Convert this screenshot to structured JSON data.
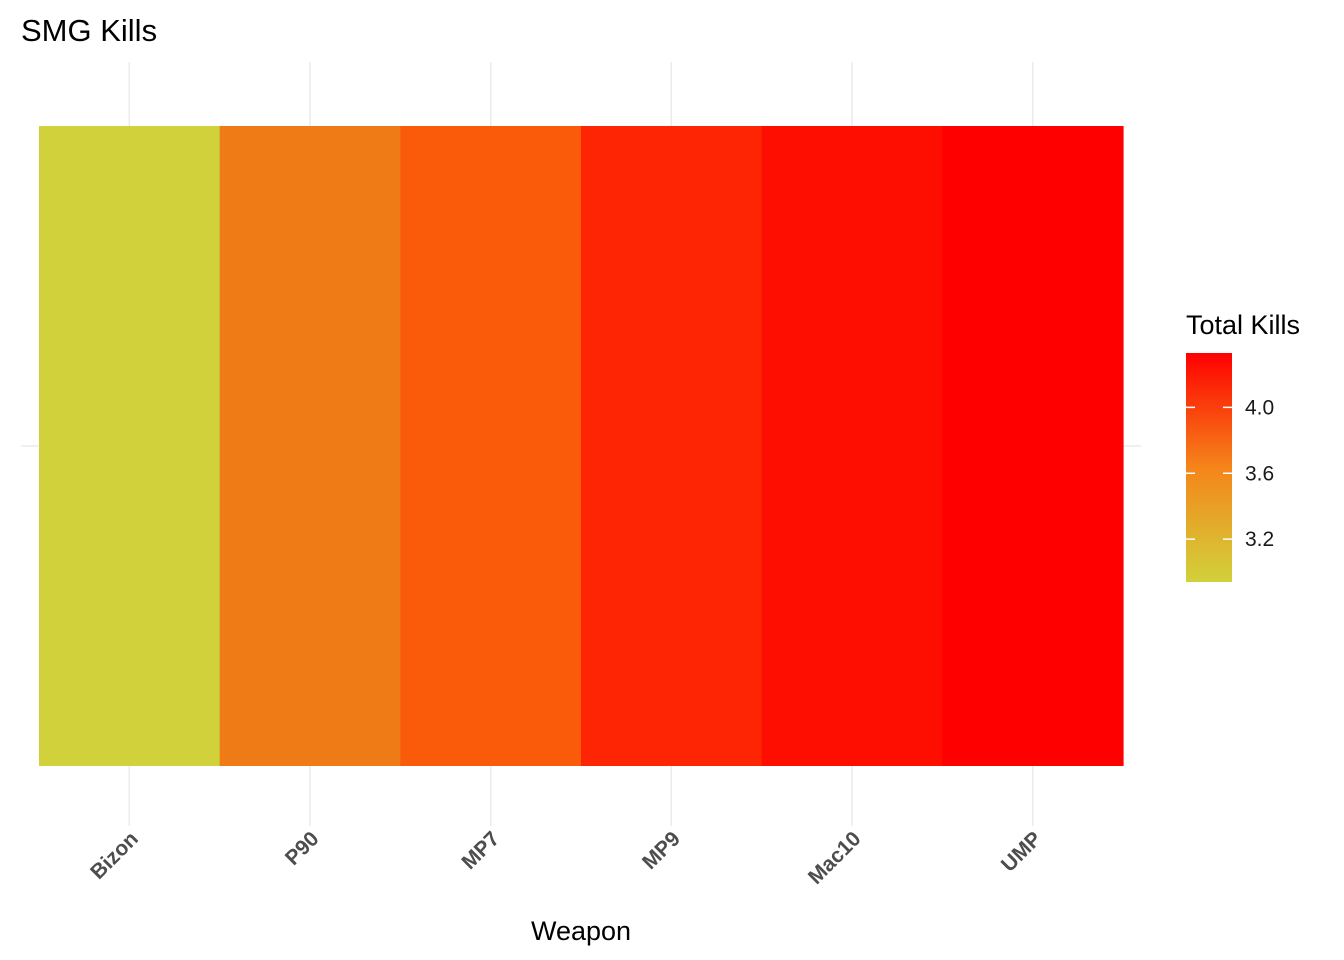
{
  "chart_data": {
    "type": "heatmap",
    "title": "SMG Kills",
    "xlabel": "Weapon",
    "ylabel": "",
    "categories": [
      "Bizon",
      "P90",
      "MP7",
      "MP9",
      "Mac10",
      "UMP"
    ],
    "values": [
      2.94,
      3.69,
      3.89,
      4.18,
      4.25,
      4.33
    ],
    "tile_colors": [
      "#d1d13b",
      "#ef7b16",
      "#f95b0a",
      "#fd2504",
      "#fe0e01",
      "#ff0000"
    ],
    "legend": {
      "title": "Total Kills",
      "ticks": [
        3.2,
        3.6,
        4.0
      ],
      "tick_labels": [
        "3.2",
        "3.6",
        "4.0"
      ],
      "range": [
        2.94,
        4.33
      ],
      "low_color": "#d1d13b",
      "mid_color": "#f5851a",
      "high_color": "#ff0000"
    }
  }
}
